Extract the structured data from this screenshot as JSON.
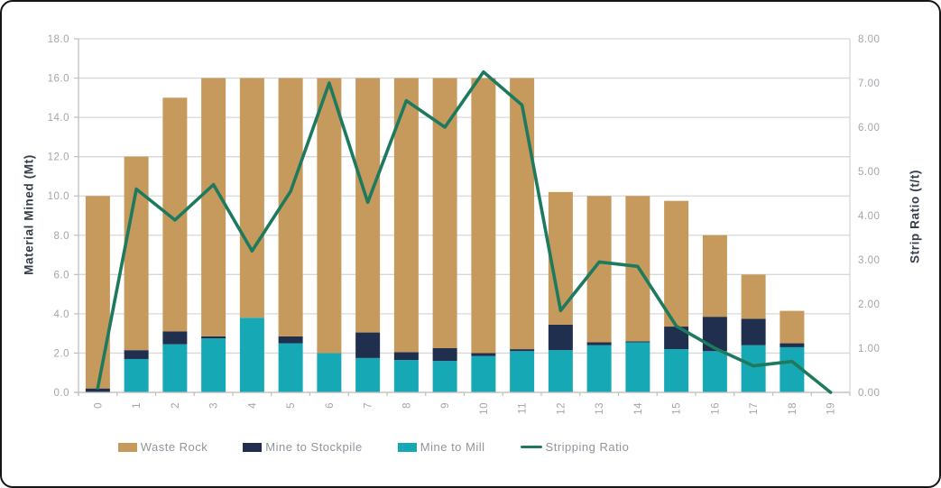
{
  "axis_titles": {
    "left": "Material Mined (Mt)",
    "right": "Strip Ratio (t/t)"
  },
  "chart_data": {
    "type": "bar",
    "stacked": true,
    "title": "",
    "xlabel": "",
    "ylabel": "Material Mined (Mt)",
    "y2label": "Strip Ratio (t/t)",
    "ylim": [
      0,
      18
    ],
    "ytick_step": 2.0,
    "ytick_format": "0.0",
    "y2lim": [
      0,
      8
    ],
    "y2tick_step": 1.0,
    "y2tick_format": "0.00",
    "grid": true,
    "legend_position": "bottom",
    "categories": [
      "0",
      "1",
      "2",
      "3",
      "4",
      "5",
      "6",
      "7",
      "8",
      "9",
      "10",
      "11",
      "12",
      "13",
      "14",
      "15",
      "16",
      "17",
      "18",
      "19"
    ],
    "series": [
      {
        "name": "Waste Rock",
        "type": "bar",
        "color": "#C59A5C",
        "values": [
          9.8,
          9.85,
          11.9,
          13.15,
          12.2,
          13.15,
          14.0,
          12.95,
          13.95,
          13.75,
          14.0,
          13.8,
          6.75,
          7.45,
          7.4,
          6.4,
          4.15,
          2.25,
          1.65,
          0
        ]
      },
      {
        "name": "Mine to Stockpile",
        "type": "bar",
        "color": "#1F2F4D",
        "values": [
          0.2,
          0.45,
          0.65,
          0.1,
          0,
          0.35,
          0,
          1.3,
          0.4,
          0.65,
          0.15,
          0.1,
          1.3,
          0.15,
          0.05,
          1.15,
          1.75,
          1.35,
          0.2,
          0
        ]
      },
      {
        "name": "Mine to Mill",
        "type": "bar",
        "color": "#17A8B5",
        "values": [
          0,
          1.7,
          2.45,
          2.75,
          3.8,
          2.5,
          2.0,
          1.75,
          1.65,
          1.6,
          1.85,
          2.1,
          2.15,
          2.4,
          2.55,
          2.2,
          2.1,
          2.4,
          2.3,
          0
        ]
      },
      {
        "name": "Stripping Ratio",
        "type": "line",
        "axis": "right",
        "color": "#1E7A5E",
        "values": [
          0.1,
          4.6,
          3.9,
          4.7,
          3.2,
          4.55,
          7.0,
          4.3,
          6.6,
          6.0,
          7.25,
          6.5,
          1.85,
          2.95,
          2.85,
          1.5,
          1.0,
          0.6,
          0.7,
          0.0
        ]
      }
    ],
    "bar_totals": [
      10.0,
      12.0,
      15.0,
      16.0,
      16.0,
      16.0,
      16.0,
      16.0,
      16.0,
      16.0,
      16.0,
      16.0,
      10.2,
      10.0,
      10.0,
      9.75,
      8.0,
      6.0,
      4.15,
      0
    ]
  },
  "style_colors": {
    "gridline": "#D8D8D8",
    "axis_line": "#BFBFBF",
    "tick_label": "#A1A6AB",
    "axis_title": "#363E49",
    "legend_label": "#8F959C"
  }
}
